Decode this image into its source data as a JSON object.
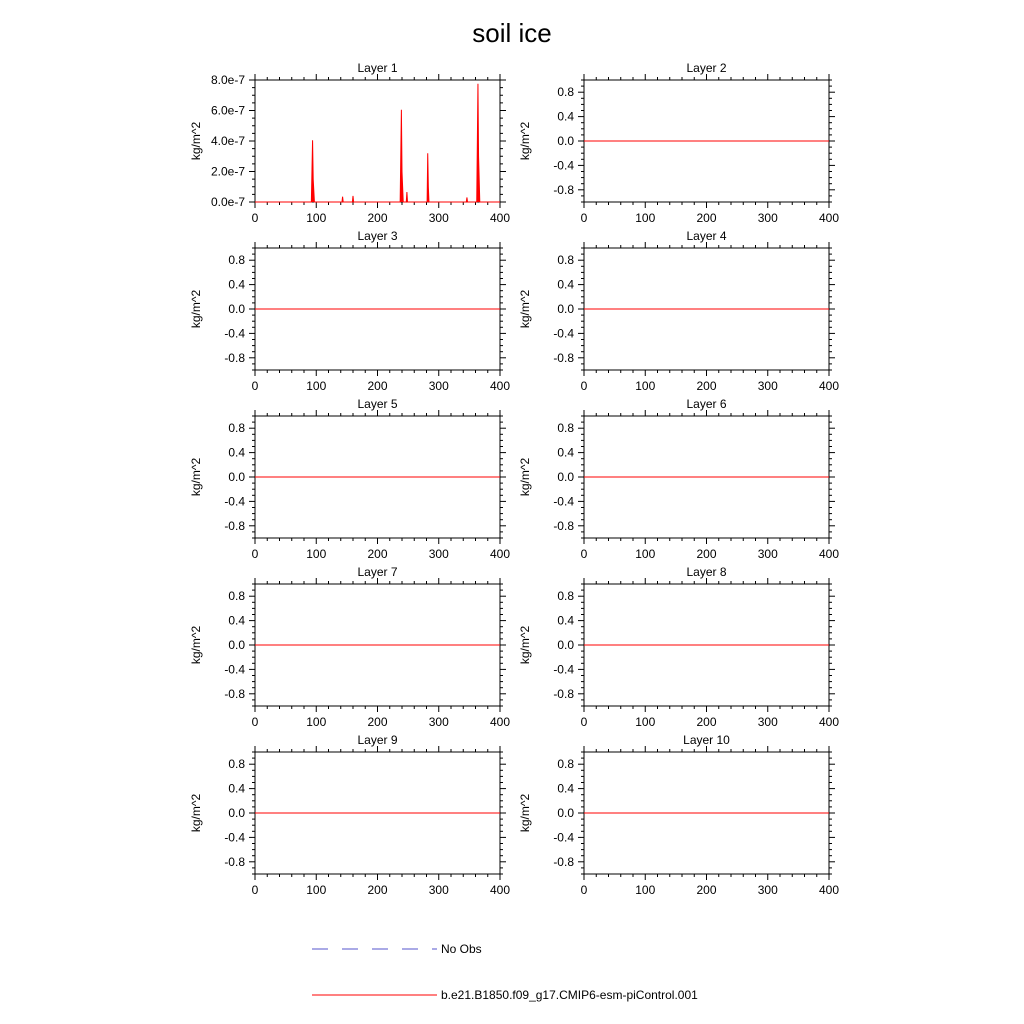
{
  "title": "soil ice",
  "x_tick_labels": [
    "0",
    "100",
    "200",
    "300",
    "400"
  ],
  "legend": [
    {
      "label": "No Obs",
      "color": "#5555cc",
      "style": "dashed"
    },
    {
      "label": "b.e21.B1850.f09_g17.CMIP6-esm-piControl.001",
      "color": "#ff0000",
      "style": "solid"
    }
  ],
  "chart_data": [
    {
      "type": "area",
      "title": "Layer 1",
      "ylabel": "kg/m^2",
      "xlim": [
        0,
        400
      ],
      "ylim": [
        0,
        8e-07
      ],
      "x_ticks": [
        0,
        100,
        200,
        300,
        400
      ],
      "y_ticks": [
        0,
        2e-07,
        4e-07,
        6e-07,
        8e-07
      ],
      "y_tick_labels": [
        "0.0e-7",
        "2.0e-7",
        "4.0e-7",
        "6.0e-7",
        "8.0e-7"
      ],
      "series": [
        {
          "color": "#ff0000",
          "x": [
            0,
            92,
            94,
            95,
            97,
            142,
            143,
            144,
            159,
            160,
            161,
            237,
            239,
            240,
            242,
            247,
            248,
            249,
            281,
            282,
            283,
            284,
            345,
            346,
            347,
            362,
            364,
            365,
            367,
            400
          ],
          "y": [
            0,
            0,
            4.05e-07,
            1.5e-07,
            0,
            0,
            3.5e-08,
            0,
            0,
            4e-08,
            0,
            0,
            6.05e-07,
            2e-07,
            0,
            0,
            6.5e-08,
            0,
            0,
            3.2e-07,
            1e-07,
            0,
            0,
            3e-08,
            0,
            0,
            7.75e-07,
            3e-07,
            0,
            0
          ]
        }
      ]
    },
    {
      "type": "line",
      "title": "Layer 2",
      "ylabel": "kg/m^2",
      "xlim": [
        0,
        400
      ],
      "ylim": [
        -1,
        1
      ],
      "x_ticks": [
        0,
        100,
        200,
        300,
        400
      ],
      "y_ticks": [
        0.8,
        0.4,
        0.0,
        -0.4,
        -0.8
      ],
      "y_tick_labels": [
        "0.8",
        "0.4",
        "0.0",
        "-0.4",
        "-0.8"
      ],
      "series": [
        {
          "color": "#ff0000",
          "x": [
            0,
            400
          ],
          "y": [
            0,
            0
          ]
        }
      ]
    },
    {
      "type": "line",
      "title": "Layer 3",
      "ylabel": "kg/m^2",
      "xlim": [
        0,
        400
      ],
      "ylim": [
        -1,
        1
      ],
      "x_ticks": [
        0,
        100,
        200,
        300,
        400
      ],
      "y_ticks": [
        0.8,
        0.4,
        0.0,
        -0.4,
        -0.8
      ],
      "y_tick_labels": [
        "0.8",
        "0.4",
        "0.0",
        "-0.4",
        "-0.8"
      ],
      "series": [
        {
          "color": "#ff0000",
          "x": [
            0,
            400
          ],
          "y": [
            0,
            0
          ]
        }
      ]
    },
    {
      "type": "line",
      "title": "Layer 4",
      "ylabel": "kg/m^2",
      "xlim": [
        0,
        400
      ],
      "ylim": [
        -1,
        1
      ],
      "x_ticks": [
        0,
        100,
        200,
        300,
        400
      ],
      "y_ticks": [
        0.8,
        0.4,
        0.0,
        -0.4,
        -0.8
      ],
      "y_tick_labels": [
        "0.8",
        "0.4",
        "0.0",
        "-0.4",
        "-0.8"
      ],
      "series": [
        {
          "color": "#ff0000",
          "x": [
            0,
            400
          ],
          "y": [
            0,
            0
          ]
        }
      ]
    },
    {
      "type": "line",
      "title": "Layer 5",
      "ylabel": "kg/m^2",
      "xlim": [
        0,
        400
      ],
      "ylim": [
        -1,
        1
      ],
      "x_ticks": [
        0,
        100,
        200,
        300,
        400
      ],
      "y_ticks": [
        0.8,
        0.4,
        0.0,
        -0.4,
        -0.8
      ],
      "y_tick_labels": [
        "0.8",
        "0.4",
        "0.0",
        "-0.4",
        "-0.8"
      ],
      "series": [
        {
          "color": "#ff0000",
          "x": [
            0,
            400
          ],
          "y": [
            0,
            0
          ]
        }
      ]
    },
    {
      "type": "line",
      "title": "Layer 6",
      "ylabel": "kg/m^2",
      "xlim": [
        0,
        400
      ],
      "ylim": [
        -1,
        1
      ],
      "x_ticks": [
        0,
        100,
        200,
        300,
        400
      ],
      "y_ticks": [
        0.8,
        0.4,
        0.0,
        -0.4,
        -0.8
      ],
      "y_tick_labels": [
        "0.8",
        "0.4",
        "0.0",
        "-0.4",
        "-0.8"
      ],
      "series": [
        {
          "color": "#ff0000",
          "x": [
            0,
            400
          ],
          "y": [
            0,
            0
          ]
        }
      ]
    },
    {
      "type": "line",
      "title": "Layer 7",
      "ylabel": "kg/m^2",
      "xlim": [
        0,
        400
      ],
      "ylim": [
        -1,
        1
      ],
      "x_ticks": [
        0,
        100,
        200,
        300,
        400
      ],
      "y_ticks": [
        0.8,
        0.4,
        0.0,
        -0.4,
        -0.8
      ],
      "y_tick_labels": [
        "0.8",
        "0.4",
        "0.0",
        "-0.4",
        "-0.8"
      ],
      "series": [
        {
          "color": "#ff0000",
          "x": [
            0,
            400
          ],
          "y": [
            0,
            0
          ]
        }
      ]
    },
    {
      "type": "line",
      "title": "Layer 8",
      "ylabel": "kg/m^2",
      "xlim": [
        0,
        400
      ],
      "ylim": [
        -1,
        1
      ],
      "x_ticks": [
        0,
        100,
        200,
        300,
        400
      ],
      "y_ticks": [
        0.8,
        0.4,
        0.0,
        -0.4,
        -0.8
      ],
      "y_tick_labels": [
        "0.8",
        "0.4",
        "0.0",
        "-0.4",
        "-0.8"
      ],
      "series": [
        {
          "color": "#ff0000",
          "x": [
            0,
            400
          ],
          "y": [
            0,
            0
          ]
        }
      ]
    },
    {
      "type": "line",
      "title": "Layer 9",
      "ylabel": "kg/m^2",
      "xlim": [
        0,
        400
      ],
      "ylim": [
        -1,
        1
      ],
      "x_ticks": [
        0,
        100,
        200,
        300,
        400
      ],
      "y_ticks": [
        0.8,
        0.4,
        0.0,
        -0.4,
        -0.8
      ],
      "y_tick_labels": [
        "0.8",
        "0.4",
        "0.0",
        "-0.4",
        "-0.8"
      ],
      "series": [
        {
          "color": "#ff0000",
          "x": [
            0,
            400
          ],
          "y": [
            0,
            0
          ]
        }
      ]
    },
    {
      "type": "line",
      "title": "Layer 10",
      "ylabel": "kg/m^2",
      "xlim": [
        0,
        400
      ],
      "ylim": [
        -1,
        1
      ],
      "x_ticks": [
        0,
        100,
        200,
        300,
        400
      ],
      "y_ticks": [
        0.8,
        0.4,
        0.0,
        -0.4,
        -0.8
      ],
      "y_tick_labels": [
        "0.8",
        "0.4",
        "0.0",
        "-0.4",
        "-0.8"
      ],
      "series": [
        {
          "color": "#ff0000",
          "x": [
            0,
            400
          ],
          "y": [
            0,
            0
          ]
        }
      ]
    }
  ]
}
